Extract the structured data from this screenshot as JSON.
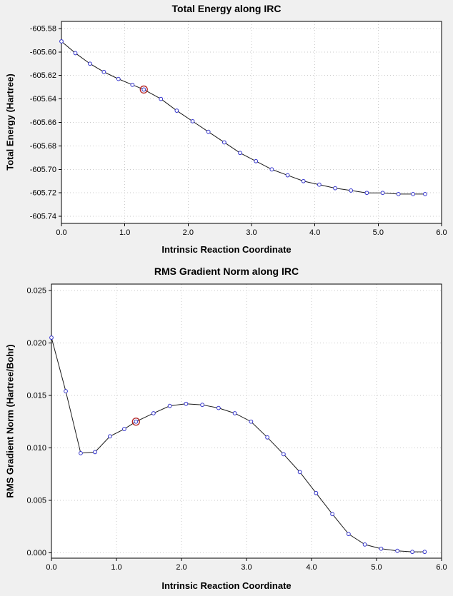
{
  "colors": {
    "background": "#f0f0f0",
    "plot_bg": "#ffffff",
    "grid": "#c9c9c9",
    "axis": "#000000",
    "line": "#1a1a1a",
    "marker": "#3333cc",
    "marker_fill": "#ffffff",
    "highlight": "#b22222"
  },
  "chart_data": [
    {
      "type": "line",
      "title": "Total Energy along IRC",
      "xlabel": "Intrinsic Reaction Coordinate",
      "ylabel": "Total Energy (Hartree)",
      "xlim": [
        0.0,
        6.0
      ],
      "ylim": [
        -605.746,
        -605.574
      ],
      "xticks": [
        "0.0",
        "1.0",
        "2.0",
        "3.0",
        "4.0",
        "5.0",
        "6.0"
      ],
      "yticks": [
        "-605.58",
        "-605.60",
        "-605.62",
        "-605.64",
        "-605.66",
        "-605.68",
        "-605.70",
        "-605.72",
        "-605.74"
      ],
      "x": [
        0.0,
        0.22,
        0.45,
        0.67,
        0.9,
        1.12,
        1.3,
        1.57,
        1.82,
        2.07,
        2.32,
        2.57,
        2.82,
        3.07,
        3.32,
        3.57,
        3.82,
        4.07,
        4.32,
        4.57,
        4.82,
        5.07,
        5.32,
        5.55,
        5.74
      ],
      "y": [
        -605.591,
        -605.601,
        -605.61,
        -605.617,
        -605.623,
        -605.628,
        -605.632,
        -605.64,
        -605.65,
        -605.659,
        -605.668,
        -605.677,
        -605.686,
        -605.693,
        -605.7,
        -605.705,
        -605.71,
        -605.713,
        -605.716,
        -605.718,
        -605.72,
        -605.72,
        -605.721,
        -605.721,
        -605.721
      ],
      "highlight_index": 6,
      "legend": null,
      "grid": "dotted"
    },
    {
      "type": "line",
      "title": "RMS Gradient Norm along IRC",
      "xlabel": "Intrinsic Reaction Coordinate",
      "ylabel": "RMS Gradient Norm (Hartree/Bohr)",
      "xlim": [
        0.0,
        6.0
      ],
      "ylim": [
        -0.0005,
        0.0256
      ],
      "xticks": [
        "0.0",
        "1.0",
        "2.0",
        "3.0",
        "4.0",
        "5.0",
        "6.0"
      ],
      "yticks": [
        "0.000",
        "0.005",
        "0.010",
        "0.015",
        "0.020",
        "0.025"
      ],
      "x": [
        0.0,
        0.22,
        0.45,
        0.67,
        0.9,
        1.12,
        1.3,
        1.57,
        1.82,
        2.07,
        2.32,
        2.57,
        2.82,
        3.07,
        3.32,
        3.57,
        3.82,
        4.07,
        4.32,
        4.57,
        4.82,
        5.07,
        5.32,
        5.55,
        5.74
      ],
      "y": [
        0.0205,
        0.0154,
        0.0095,
        0.0096,
        0.0111,
        0.0118,
        0.0125,
        0.0133,
        0.014,
        0.0142,
        0.0141,
        0.0138,
        0.0133,
        0.0125,
        0.011,
        0.0094,
        0.0077,
        0.0057,
        0.0037,
        0.0018,
        0.0008,
        0.0004,
        0.0002,
        0.0001,
        0.0001
      ],
      "highlight_index": 6,
      "legend": null,
      "grid": "dotted"
    }
  ]
}
